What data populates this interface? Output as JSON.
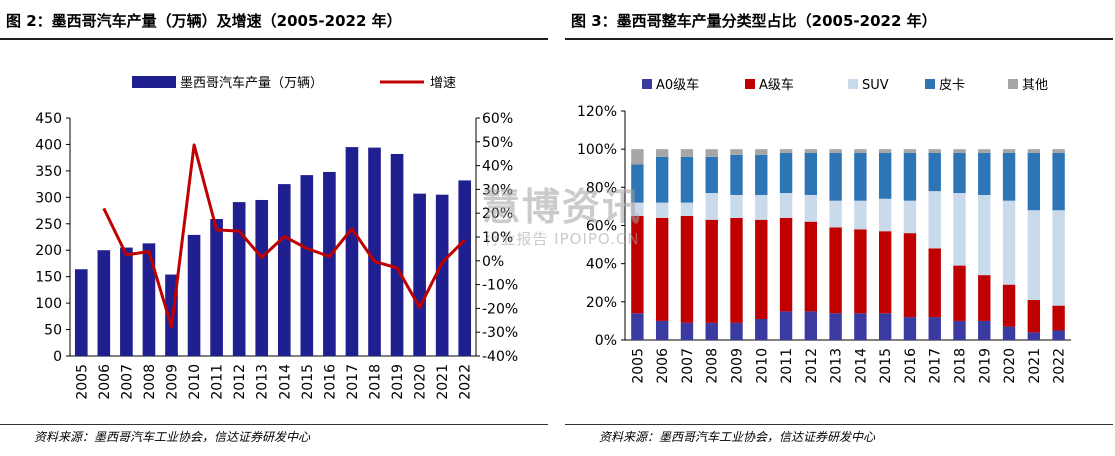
{
  "left": {
    "title": "图 2：墨西哥汽车产量（万辆）及增速（2005-2022 年）",
    "source": "资料来源：墨西哥汽车工业协会，信达证券研发中心",
    "chart_data": {
      "type": "bar",
      "categories": [
        "2005",
        "2006",
        "2007",
        "2008",
        "2009",
        "2010",
        "2011",
        "2012",
        "2013",
        "2014",
        "2015",
        "2016",
        "2017",
        "2018",
        "2019",
        "2020",
        "2021",
        "2022"
      ],
      "series": [
        {
          "name": "墨西哥汽车产量（万辆）",
          "type": "bar",
          "axis": "left",
          "color": "#1f1f8f",
          "values": [
            164,
            200,
            205,
            213,
            154,
            229,
            259,
            291,
            295,
            325,
            342,
            348,
            395,
            394,
            382,
            307,
            305,
            332
          ]
        },
        {
          "name": "增速",
          "type": "line",
          "axis": "right",
          "color": "#c00000",
          "values": [
            null,
            22,
            2.5,
            3.9,
            -27.7,
            48.7,
            13,
            12.5,
            1.4,
            10.2,
            5.2,
            1.8,
            13.5,
            -0.3,
            -3,
            -19.6,
            -0.7,
            8.8
          ]
        }
      ],
      "left_axis": {
        "min": 0,
        "max": 450,
        "ticks": [
          "0",
          "50",
          "100",
          "150",
          "200",
          "250",
          "300",
          "350",
          "400",
          "450"
        ]
      },
      "right_axis": {
        "min": -40,
        "max": 60,
        "ticks": [
          "-40%",
          "-30%",
          "-20%",
          "-10%",
          "0%",
          "10%",
          "20%",
          "30%",
          "40%",
          "50%",
          "60%"
        ]
      },
      "legend_position": "top"
    }
  },
  "right": {
    "title": "图 3：墨西哥整车产量分类型占比（2005-2022 年）",
    "source": "资料来源：墨西哥汽车工业协会，信达证券研发中心",
    "chart_data": {
      "type": "bar",
      "stacked": true,
      "categories": [
        "2005",
        "2006",
        "2007",
        "2008",
        "2009",
        "2010",
        "2011",
        "2012",
        "2013",
        "2014",
        "2015",
        "2016",
        "2017",
        "2018",
        "2019",
        "2020",
        "2021",
        "2022"
      ],
      "series": [
        {
          "name": "A0级车",
          "color": "#3a3aa0",
          "values": [
            14,
            10,
            9,
            9,
            9,
            11,
            15,
            15,
            14,
            14,
            14,
            12,
            12,
            10,
            10,
            7,
            4,
            5
          ]
        },
        {
          "name": "A级车",
          "color": "#c00000",
          "values": [
            51,
            54,
            56,
            54,
            55,
            52,
            49,
            47,
            45,
            44,
            43,
            44,
            36,
            29,
            24,
            22,
            17,
            13
          ]
        },
        {
          "name": "SUV",
          "color": "#c9daeb",
          "values": [
            7,
            8,
            7,
            14,
            12,
            13,
            13,
            14,
            14,
            15,
            17,
            17,
            30,
            38,
            42,
            44,
            47,
            50
          ]
        },
        {
          "name": "皮卡",
          "color": "#2e75b6",
          "values": [
            20,
            24,
            24,
            19,
            21,
            21,
            21,
            22,
            25,
            25,
            24,
            25,
            20,
            21,
            22,
            25,
            30,
            30
          ]
        },
        {
          "name": "其他",
          "color": "#a6a6a6",
          "values": [
            8,
            4,
            4,
            4,
            3,
            3,
            2,
            2,
            2,
            2,
            2,
            2,
            2,
            2,
            2,
            2,
            2,
            2
          ]
        }
      ],
      "y_axis": {
        "min": 0,
        "max": 120,
        "ticks": [
          "0%",
          "20%",
          "40%",
          "60%",
          "80%",
          "100%",
          "120%"
        ]
      },
      "legend_position": "top"
    }
  },
  "watermark": {
    "main": "慧博资讯",
    "sub": "行业报告 IPOIPO.CN"
  }
}
